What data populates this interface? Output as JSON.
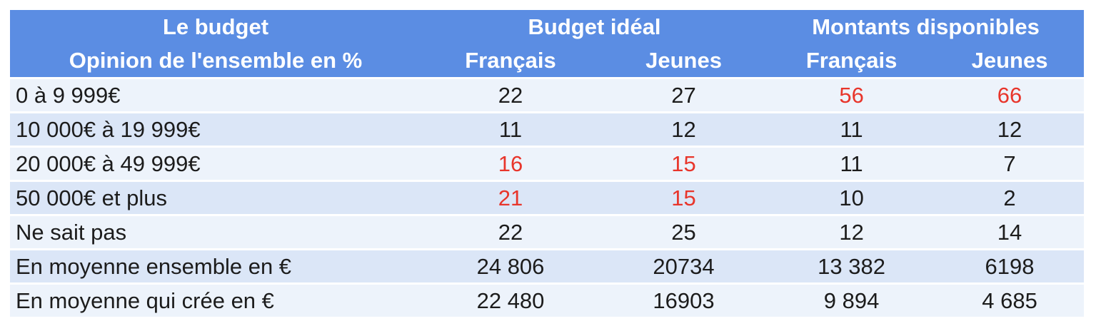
{
  "colors": {
    "header_bg": "#5B8DE3",
    "row_light": "#EDF3FB",
    "row_dark": "#DBE6F7",
    "highlight_red": "#E8352B",
    "text": "#1C1C1C",
    "header_text": "#FFFFFF"
  },
  "table": {
    "header": {
      "title_line1": "Le budget",
      "title_line2": "Opinion de l'ensemble en %",
      "groups": [
        {
          "label": "Budget idéal"
        },
        {
          "label": "Montants disponibles"
        }
      ],
      "subcolumns": [
        "Français",
        "Jeunes",
        "Français",
        "Jeunes"
      ]
    },
    "rows": [
      {
        "label": "0 à 9 999€",
        "values": [
          {
            "text": "22",
            "red": false
          },
          {
            "text": "27",
            "red": false
          },
          {
            "text": "56",
            "red": true
          },
          {
            "text": "66",
            "red": true
          }
        ]
      },
      {
        "label": "10 000€ à 19 999€",
        "values": [
          {
            "text": "11",
            "red": false
          },
          {
            "text": "12",
            "red": false
          },
          {
            "text": "11",
            "red": false
          },
          {
            "text": "12",
            "red": false
          }
        ]
      },
      {
        "label": "20 000€ à 49 999€",
        "values": [
          {
            "text": "16",
            "red": true
          },
          {
            "text": "15",
            "red": true
          },
          {
            "text": "11",
            "red": false
          },
          {
            "text": "7",
            "red": false
          }
        ]
      },
      {
        "label": "50 000€ et plus",
        "values": [
          {
            "text": "21",
            "red": true
          },
          {
            "text": "15",
            "red": true
          },
          {
            "text": "10",
            "red": false
          },
          {
            "text": "2",
            "red": false
          }
        ]
      },
      {
        "label": "Ne sait pas",
        "values": [
          {
            "text": "22",
            "red": false
          },
          {
            "text": "25",
            "red": false
          },
          {
            "text": "12",
            "red": false
          },
          {
            "text": "14",
            "red": false
          }
        ]
      },
      {
        "label": "En moyenne ensemble en €",
        "values": [
          {
            "text": "24 806",
            "red": false
          },
          {
            "text": "20734",
            "red": false
          },
          {
            "text": "13 382",
            "red": false
          },
          {
            "text": "6198",
            "red": false
          }
        ]
      },
      {
        "label": "En moyenne qui crée en €",
        "values": [
          {
            "text": "22 480",
            "red": false
          },
          {
            "text": "16903",
            "red": false
          },
          {
            "text": "9 894",
            "red": false
          },
          {
            "text": "4 685",
            "red": false
          }
        ]
      }
    ]
  }
}
